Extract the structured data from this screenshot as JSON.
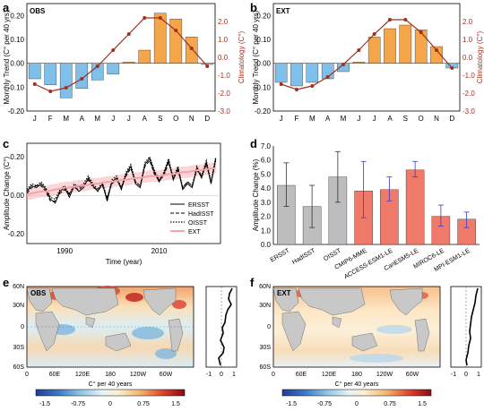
{
  "panels": {
    "a": {
      "label": "a",
      "tag": "OBS"
    },
    "b": {
      "label": "b",
      "tag": "EXT"
    },
    "c": {
      "label": "c"
    },
    "d": {
      "label": "d"
    },
    "e": {
      "label": "e",
      "tag": "OBS"
    },
    "f": {
      "label": "f",
      "tag": "EXT"
    }
  },
  "colors": {
    "pos_bar": "#f5a54a",
    "neg_bar": "#7ec0ea",
    "climatology": "#a0301e",
    "obs_bar": "#bdbdbd",
    "model_bar": "#f07a6a",
    "ext_line": "#f4a4a8",
    "error_bar": "#3a3acf"
  },
  "maps": {
    "lat_labels": [
      "60N",
      "30N",
      "0",
      "30S",
      "60S"
    ],
    "lon_labels": [
      "0",
      "60E",
      "120E",
      "180",
      "120W",
      "60W"
    ],
    "profile_ticks": [
      "-1",
      "0",
      "1"
    ],
    "colorbar_ticks": [
      "-1.5",
      "-0.75",
      "0",
      "0.75",
      "1.5"
    ],
    "colorbar_label": "C° per 40 years"
  },
  "chart_data": [
    {
      "id": "a",
      "type": "bar",
      "title": "OBS",
      "categories": [
        "J",
        "F",
        "M",
        "A",
        "M",
        "J",
        "J",
        "A",
        "S",
        "O",
        "N",
        "D"
      ],
      "ylabel": "Monthly Trend (C° per 40 yrs)",
      "y2label": "Climatology (C°)",
      "ylim": [
        -0.2,
        0.25
      ],
      "yticks": [
        "0.20",
        "0.10",
        "0.00",
        "-0.10",
        "-0.20"
      ],
      "y2lim": [
        -3.0,
        3.0
      ],
      "y2ticks": [
        "2.0",
        "1.0",
        "0.0",
        "-1.0",
        "-2.0",
        "-3.0"
      ],
      "series": [
        {
          "kind": "bar",
          "values": [
            -0.065,
            -0.09,
            -0.145,
            -0.105,
            -0.07,
            -0.045,
            0.005,
            0.055,
            0.21,
            0.185,
            0.11,
            -0.005
          ]
        },
        {
          "kind": "line",
          "values": [
            -1.5,
            -1.9,
            -1.7,
            -1.2,
            -0.5,
            0.4,
            1.3,
            2.2,
            2.2,
            1.5,
            0.5,
            -0.5
          ]
        }
      ]
    },
    {
      "id": "b",
      "type": "bar",
      "title": "EXT",
      "categories": [
        "J",
        "F",
        "M",
        "A",
        "M",
        "J",
        "J",
        "A",
        "S",
        "O",
        "N",
        "D"
      ],
      "ylabel": "Monthly Trend (C° per 40 yrs)",
      "y2label": "Climatology (C°)",
      "ylim": [
        -0.2,
        0.25
      ],
      "yticks": [
        "0.20",
        "0.10",
        "0.00",
        "-0.10",
        "-0.20"
      ],
      "y2lim": [
        -3.0,
        3.0
      ],
      "y2ticks": [
        "2.0",
        "1.0",
        "0.0",
        "-1.0",
        "-2.0",
        "-3.0"
      ],
      "series": [
        {
          "kind": "bar",
          "values": [
            -0.08,
            -0.095,
            -0.08,
            -0.065,
            -0.035,
            0.005,
            0.11,
            0.145,
            0.16,
            0.14,
            0.07,
            -0.02
          ]
        },
        {
          "kind": "line",
          "values": [
            -1.5,
            -1.8,
            -1.6,
            -1.1,
            -0.4,
            0.4,
            1.3,
            2.1,
            2.1,
            1.4,
            0.4,
            -0.6
          ]
        }
      ]
    },
    {
      "id": "c",
      "type": "line",
      "xlabel": "Time (year)",
      "ylabel": "Amplitude Change (C°)",
      "xlim": [
        1982,
        2023
      ],
      "xticks": [
        "1990",
        "2010"
      ],
      "ylim": [
        -0.25,
        0.27
      ],
      "yticks": [
        "0.20",
        "0.00",
        "-0.20"
      ],
      "legend": "bottom-right",
      "x": [
        1982,
        1983,
        1984,
        1985,
        1986,
        1987,
        1988,
        1989,
        1990,
        1991,
        1992,
        1993,
        1994,
        1995,
        1996,
        1997,
        1998,
        1999,
        2000,
        2001,
        2002,
        2003,
        2004,
        2005,
        2006,
        2007,
        2008,
        2009,
        2010,
        2011,
        2012,
        2013,
        2014,
        2015,
        2016,
        2017,
        2018,
        2019,
        2020,
        2021,
        2022
      ],
      "series": [
        {
          "name": "ERSST",
          "style": "solid",
          "values": [
            0.02,
            0.05,
            0.04,
            0.06,
            0.03,
            -0.02,
            -0.04,
            0.02,
            0.04,
            -0.01,
            0.05,
            0.02,
            0.04,
            0.09,
            0.05,
            0.02,
            0.06,
            -0.03,
            0.07,
            0.09,
            0.03,
            0.11,
            0.15,
            0.06,
            0.04,
            0.16,
            0.19,
            0.12,
            0.07,
            0.11,
            0.18,
            0.08,
            0.14,
            0.03,
            0.06,
            0.04,
            0.14,
            0.09,
            0.17,
            0.06,
            0.19
          ]
        },
        {
          "name": "HadISST",
          "style": "dash",
          "values": [
            0.01,
            0.04,
            0.05,
            0.05,
            0.02,
            -0.03,
            -0.03,
            0.01,
            0.03,
            0.01,
            0.04,
            0.03,
            0.05,
            0.08,
            0.04,
            0.03,
            0.05,
            -0.01,
            0.06,
            0.08,
            0.04,
            0.1,
            0.14,
            0.07,
            0.05,
            0.15,
            0.18,
            0.11,
            0.08,
            0.1,
            0.17,
            0.09,
            0.13,
            0.04,
            0.07,
            0.05,
            0.13,
            0.1,
            0.16,
            0.07,
            0.18
          ]
        },
        {
          "name": "OISST",
          "style": "dot",
          "values": [
            0.03,
            0.06,
            0.05,
            0.07,
            0.04,
            -0.01,
            -0.02,
            0.03,
            0.05,
            0.0,
            0.06,
            0.04,
            0.06,
            0.1,
            0.06,
            0.03,
            0.07,
            -0.02,
            0.08,
            0.1,
            0.04,
            0.12,
            0.16,
            0.07,
            0.05,
            0.17,
            0.2,
            0.13,
            0.08,
            0.12,
            0.19,
            0.09,
            0.15,
            0.04,
            0.07,
            0.05,
            0.15,
            0.1,
            0.18,
            0.07,
            0.2
          ]
        },
        {
          "name": "EXT",
          "style": "pink",
          "values": [
            0.005,
            0.01,
            0.015,
            0.02,
            0.02,
            0.025,
            0.03,
            0.035,
            0.04,
            0.04,
            0.045,
            0.05,
            0.05,
            0.055,
            0.06,
            0.06,
            0.065,
            0.07,
            0.07,
            0.075,
            0.08,
            0.08,
            0.085,
            0.09,
            0.09,
            0.095,
            0.1,
            0.1,
            0.1,
            0.105,
            0.11,
            0.11,
            0.115,
            0.12,
            0.12,
            0.125,
            0.13,
            0.13,
            0.135,
            0.14,
            0.14
          ]
        }
      ]
    },
    {
      "id": "d",
      "type": "bar",
      "ylabel": "Amplitude Change (%)",
      "ylim": [
        0,
        7
      ],
      "yticks": [
        "7.0",
        "6.0",
        "5.0",
        "4.0",
        "3.0",
        "2.0",
        "1.0",
        "0.0"
      ],
      "categories": [
        "ERSST",
        "HadISST",
        "OISST",
        "CMIP6-MME",
        "ACCESS-ESM1-LE",
        "CanESM5-LE",
        "MIROC6-LE",
        "MPI-ESM1-LE"
      ],
      "values": [
        4.2,
        2.7,
        4.8,
        3.8,
        3.9,
        5.3,
        2.0,
        1.8
      ],
      "error_low": [
        2.7,
        1.2,
        3.0,
        1.9,
        3.1,
        4.8,
        1.3,
        1.2
      ],
      "error_high": [
        5.8,
        4.2,
        6.6,
        5.9,
        4.8,
        5.9,
        2.8,
        2.3
      ]
    }
  ]
}
